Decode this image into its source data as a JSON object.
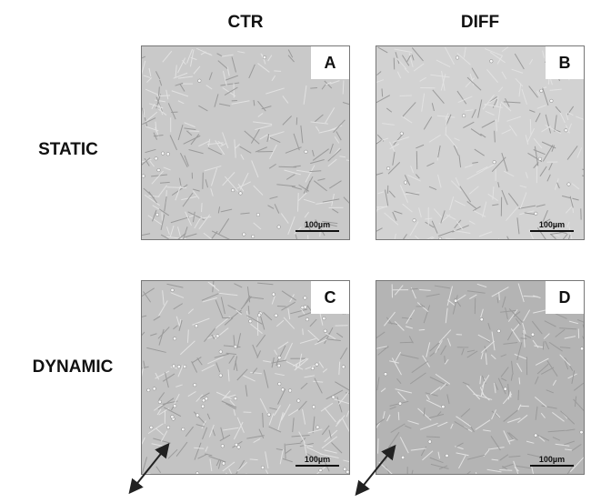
{
  "columns": [
    "CTR",
    "DIFF"
  ],
  "rows": [
    "STATIC",
    "DYNAMIC"
  ],
  "panels": [
    {
      "label": "A",
      "scale_bar": "100µm",
      "tone": "#c9c9c9"
    },
    {
      "label": "B",
      "scale_bar": "100µm",
      "tone": "#d2d2d2"
    },
    {
      "label": "C",
      "scale_bar": "100µm",
      "tone": "#c3c3c3"
    },
    {
      "label": "D",
      "scale_bar": "100µm",
      "tone": "#b4b4b4"
    }
  ]
}
